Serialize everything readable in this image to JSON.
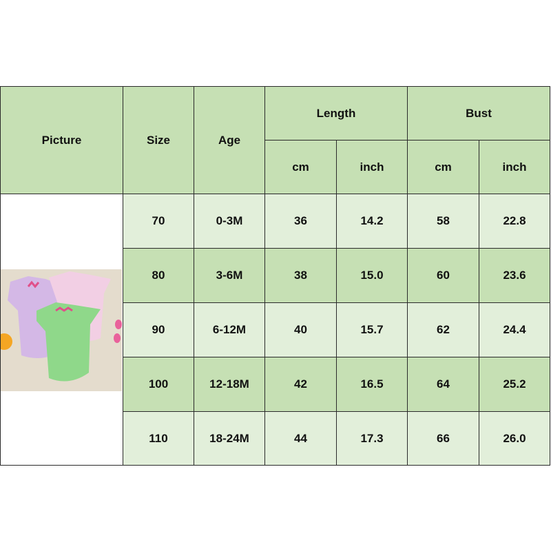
{
  "header": {
    "picture": "Picture",
    "size": "Size",
    "age": "Age",
    "length": "Length",
    "bust": "Bust",
    "cm": "cm",
    "inch": "inch"
  },
  "rows": [
    {
      "size": "70",
      "age": "0-3M",
      "length_cm": "36",
      "length_inch": "14.2",
      "bust_cm": "58",
      "bust_inch": "22.8"
    },
    {
      "size": "80",
      "age": "3-6M",
      "length_cm": "38",
      "length_inch": "15.0",
      "bust_cm": "60",
      "bust_inch": "23.6"
    },
    {
      "size": "90",
      "age": "6-12M",
      "length_cm": "40",
      "length_inch": "15.7",
      "bust_cm": "62",
      "bust_inch": "24.4"
    },
    {
      "size": "100",
      "age": "12-18M",
      "length_cm": "42",
      "length_inch": "16.5",
      "bust_cm": "64",
      "bust_inch": "25.2"
    },
    {
      "size": "110",
      "age": "18-24M",
      "length_cm": "44",
      "length_inch": "17.3",
      "bust_cm": "66",
      "bust_inch": "26.0"
    }
  ],
  "colors": {
    "header": "#c6e0b4",
    "row_light": "#e2efda",
    "row_dark": "#c6e0b4"
  }
}
